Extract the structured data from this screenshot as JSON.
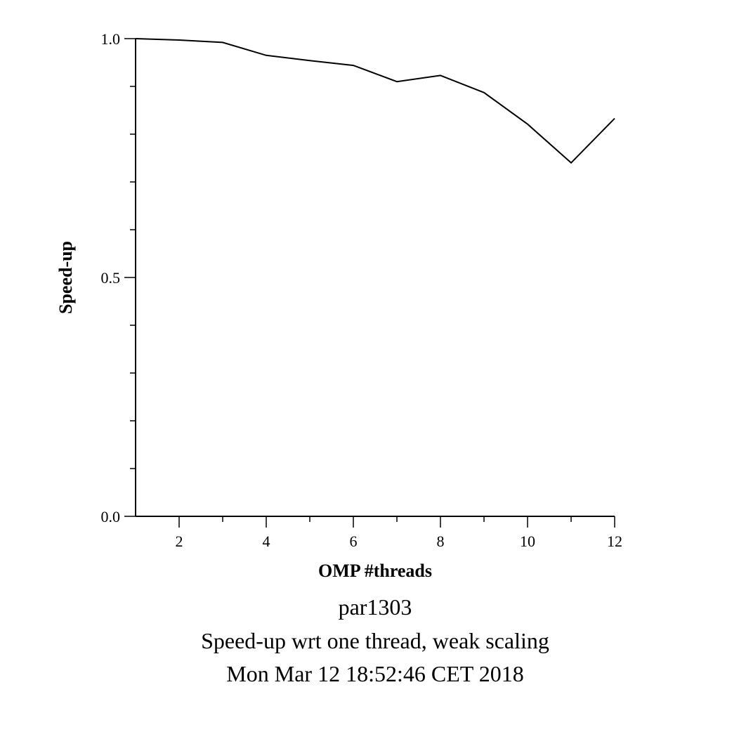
{
  "chart_data": {
    "type": "line",
    "xlabel": "OMP #threads",
    "ylabel": "Speed-up",
    "xlim": [
      1,
      12
    ],
    "ylim": [
      0,
      1
    ],
    "x_ticks": [
      2,
      4,
      6,
      8,
      10,
      12
    ],
    "x_tick_labels": [
      "2",
      "4",
      "6",
      "8",
      "10",
      "12"
    ],
    "x_minor_ticks": [
      3,
      5,
      7,
      9,
      11
    ],
    "y_ticks": [
      0,
      0.5,
      1
    ],
    "y_tick_labels": [
      "0.0",
      "0.5",
      "1.0"
    ],
    "y_minor_ticks": [
      0.1,
      0.2,
      0.3,
      0.4,
      0.6,
      0.7,
      0.8,
      0.9
    ],
    "grid": false,
    "legend": "none",
    "series": [
      {
        "x": [
          1,
          2,
          3,
          4,
          5,
          6,
          7,
          8,
          9,
          10,
          11,
          12
        ],
        "values": [
          1.0,
          0.997,
          0.992,
          0.965,
          0.954,
          0.944,
          0.91,
          0.923,
          0.887,
          0.821,
          0.74,
          0.833
        ],
        "color": "#000000"
      }
    ],
    "caption": [
      "par1303",
      "Speed-up wrt one thread, weak scaling",
      "Mon Mar 12 18:52:46 CET 2018"
    ]
  }
}
